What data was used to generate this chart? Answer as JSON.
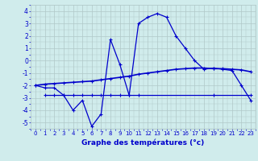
{
  "hours": [
    0,
    1,
    2,
    3,
    4,
    5,
    6,
    7,
    8,
    9,
    10,
    11,
    12,
    13,
    14,
    15,
    16,
    17,
    18,
    19,
    20,
    21,
    22,
    23
  ],
  "temp_curve": [
    -2.0,
    -2.2,
    -2.2,
    -2.8,
    -4.0,
    -3.2,
    -5.3,
    -4.3,
    1.7,
    -0.3,
    -2.8,
    3.0,
    3.5,
    3.8,
    3.5,
    2.0,
    1.0,
    0.0,
    -0.7,
    -0.6,
    -0.7,
    -0.8,
    -2.0,
    -3.2
  ],
  "line2": [
    -2.0,
    -1.9,
    -1.85,
    -1.8,
    -1.75,
    -1.7,
    -1.65,
    -1.55,
    -1.45,
    -1.35,
    -1.25,
    -1.1,
    -1.0,
    -0.9,
    -0.8,
    -0.7,
    -0.65,
    -0.6,
    -0.6,
    -0.65,
    -0.65,
    -0.7,
    -0.75,
    -0.9
  ],
  "line3_x": [
    1,
    2,
    3,
    4,
    5,
    6,
    7,
    8,
    9,
    10,
    11,
    19,
    23
  ],
  "line3_y": [
    -2.8,
    -2.8,
    -2.8,
    -2.8,
    -2.8,
    -2.8,
    -2.8,
    -2.8,
    -2.8,
    -2.8,
    -2.8,
    -2.8,
    -2.8
  ],
  "ylim": [
    -5.5,
    4.5
  ],
  "yticks": [
    -5,
    -4,
    -3,
    -2,
    -1,
    0,
    1,
    2,
    3,
    4
  ],
  "xlabel": "Graphe des températures (°c)",
  "line_color": "#0000cc",
  "bg_color": "#d0ecec",
  "grid_color": "#b0c8c8",
  "tick_color": "#0000cc",
  "xlabel_color": "#0000cc",
  "figsize": [
    3.2,
    2.0
  ],
  "dpi": 100
}
